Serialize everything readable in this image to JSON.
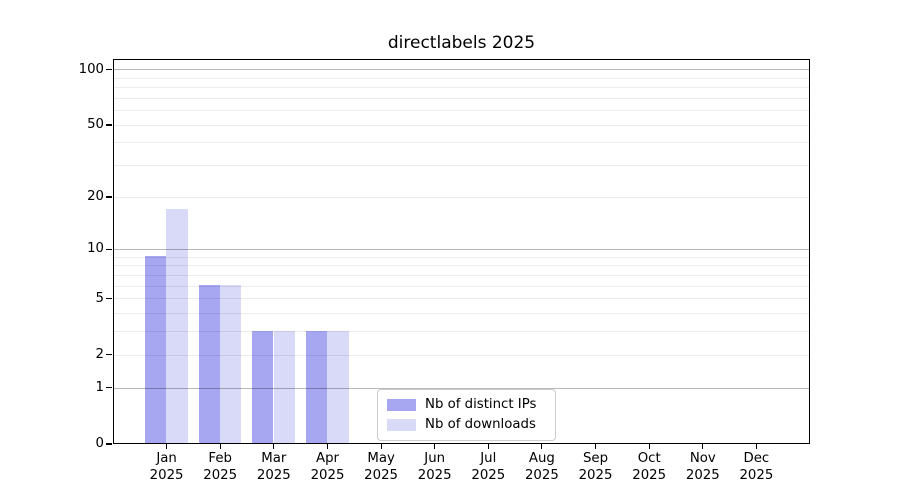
{
  "chart_data": {
    "type": "bar",
    "title": "directlabels 2025",
    "year_label": "2025",
    "categories": [
      "Jan",
      "Feb",
      "Mar",
      "Apr",
      "May",
      "Jun",
      "Jul",
      "Aug",
      "Sep",
      "Oct",
      "Nov",
      "Dec"
    ],
    "series": [
      {
        "name": "Nb of distinct IPs",
        "color": "#a6a6f1",
        "values": [
          9,
          6,
          3,
          3,
          0,
          0,
          0,
          0,
          0,
          0,
          0,
          0
        ]
      },
      {
        "name": "Nb of downloads",
        "color": "#d9d9f8",
        "values": [
          17,
          6,
          3,
          3,
          0,
          0,
          0,
          0,
          0,
          0,
          0,
          0
        ]
      }
    ],
    "y_scale": "log1p",
    "ylim": [
      0,
      114
    ],
    "y_ticks": [
      0,
      1,
      2,
      5,
      10,
      20,
      50,
      100
    ],
    "grid_major": [
      1,
      10,
      100
    ],
    "grid_minor": [
      2,
      3,
      4,
      5,
      6,
      7,
      8,
      9,
      20,
      30,
      40,
      50,
      60,
      70,
      80,
      90
    ],
    "legend_position": "lower-center",
    "axis_color": "#000000",
    "bar_colors": {
      "distinct_ips": "#a6a6f1",
      "downloads": "#d9d9f8"
    },
    "grid_colors": {
      "minor": "rgba(0,0,0,0.075)",
      "major": "rgba(0,0,0,0.28)"
    }
  }
}
